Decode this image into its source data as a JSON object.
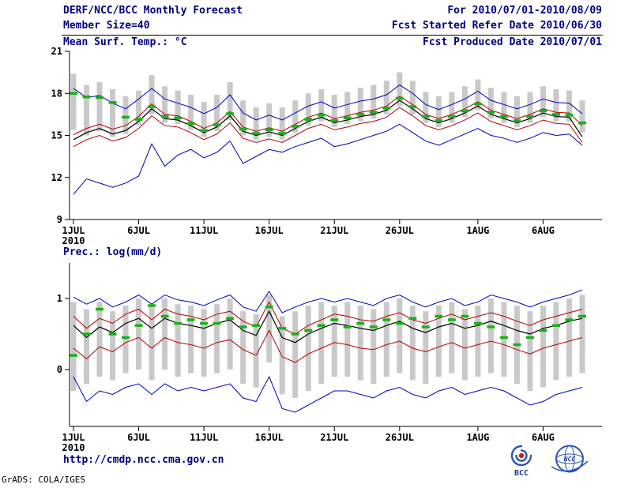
{
  "header": {
    "title": "DERF/NCC/BCC Monthly Forecast",
    "member_size": "Member Size=40",
    "temp_axis_title": "Mean Surf. Temp.: °C",
    "forecast_range": "For 2010/07/01-2010/08/09",
    "refer_date": "Fcst Started Refer Date 2010/06/30",
    "produced_date": "Fcst Produced Date 2010/07/01"
  },
  "precip_axis_title": "Prec.: log(mm/d)",
  "footer": {
    "url": "http://cmdp.ncc.cma.gov.cn",
    "bcc_logo_text": "BCC",
    "ncc_logo_text": "NCC",
    "grads_credit": "GrADS: COLA/IGES"
  },
  "chart_data": [
    {
      "name": "surface-temperature-forecast",
      "type": "line",
      "title": "Mean Surf. Temp.: °C",
      "n": 40,
      "x_tick_days": [
        1,
        6,
        11,
        16,
        21,
        26,
        32,
        37
      ],
      "x_tick_labels": [
        "1JUL",
        "6JUL",
        "11JUL",
        "16JUL",
        "21JUL",
        "26JUL",
        "1AUG",
        "6AUG"
      ],
      "x_year_label": "2010",
      "ylim": [
        9,
        21
      ],
      "y_ticks": [
        9,
        12,
        15,
        18,
        21
      ],
      "bar_color": "#c9c9c9",
      "bars": {
        "low": [
          15.4,
          15.0,
          15.3,
          14.9,
          15.1,
          15.7,
          16.5,
          15.9,
          15.8,
          15.4,
          14.9,
          15.3,
          16.1,
          15.0,
          14.7,
          14.9,
          14.7,
          15.2,
          15.7,
          16.0,
          15.6,
          15.8,
          16.0,
          16.2,
          16.5,
          17.1,
          16.5,
          15.9,
          15.6,
          15.9,
          16.3,
          16.8,
          16.2,
          15.9,
          15.6,
          15.9,
          16.3,
          16.0,
          16.0,
          15.2
        ],
        "high": [
          19.4,
          18.6,
          18.8,
          18.3,
          17.8,
          18.2,
          19.3,
          18.5,
          18.2,
          17.9,
          17.4,
          17.9,
          18.8,
          17.5,
          17.0,
          17.3,
          17.0,
          17.5,
          18.0,
          18.3,
          17.9,
          18.1,
          18.4,
          18.6,
          18.9,
          19.5,
          18.9,
          18.1,
          17.8,
          18.1,
          18.5,
          19.0,
          18.4,
          18.1,
          17.8,
          18.1,
          18.5,
          18.3,
          18.2,
          17.5
        ]
      },
      "lines": [
        {
          "name": "ensemble-max",
          "color": "#0000bb",
          "width": 1,
          "values": [
            18.35,
            17.7,
            17.85,
            17.3,
            16.9,
            17.6,
            18.35,
            17.6,
            17.3,
            17.0,
            16.55,
            17.0,
            17.9,
            16.6,
            16.1,
            16.45,
            16.1,
            16.6,
            17.1,
            17.4,
            16.95,
            17.2,
            17.45,
            17.6,
            17.9,
            18.6,
            18.0,
            17.2,
            16.85,
            17.2,
            17.6,
            18.15,
            17.5,
            17.2,
            16.9,
            17.2,
            17.6,
            17.35,
            17.3,
            16.55
          ]
        },
        {
          "name": "upper-quartile",
          "color": "#b40000",
          "width": 1,
          "values": [
            15.05,
            15.5,
            15.8,
            15.45,
            15.7,
            16.35,
            17.25,
            16.5,
            16.4,
            16.0,
            15.5,
            15.9,
            16.7,
            15.6,
            15.3,
            15.55,
            15.3,
            15.8,
            16.3,
            16.6,
            16.2,
            16.4,
            16.65,
            16.8,
            17.1,
            17.8,
            17.2,
            16.5,
            16.2,
            16.5,
            16.9,
            17.4,
            16.8,
            16.5,
            16.2,
            16.5,
            16.9,
            16.65,
            16.6,
            15.7
          ]
        },
        {
          "name": "ensemble-median",
          "color": "#000000",
          "width": 1.2,
          "values": [
            14.7,
            15.2,
            15.5,
            15.1,
            15.35,
            16.0,
            16.9,
            16.2,
            16.1,
            15.7,
            15.2,
            15.6,
            16.4,
            15.3,
            15.0,
            15.25,
            15.0,
            15.5,
            16.0,
            16.3,
            15.9,
            16.1,
            16.35,
            16.5,
            16.8,
            17.5,
            16.9,
            16.2,
            15.9,
            16.2,
            16.6,
            17.1,
            16.5,
            16.2,
            15.9,
            16.2,
            16.6,
            16.35,
            16.3,
            14.9
          ]
        },
        {
          "name": "lower-quartile",
          "color": "#b40000",
          "width": 1,
          "values": [
            14.2,
            14.7,
            15.0,
            14.6,
            14.85,
            15.5,
            16.4,
            15.7,
            15.6,
            15.2,
            14.7,
            15.1,
            15.9,
            14.8,
            14.5,
            14.75,
            14.5,
            15.0,
            15.5,
            15.8,
            15.4,
            15.6,
            15.85,
            16.0,
            16.3,
            17.0,
            16.4,
            15.7,
            15.4,
            15.7,
            16.1,
            16.6,
            16.0,
            15.7,
            15.4,
            15.7,
            16.1,
            15.85,
            15.8,
            14.5
          ]
        },
        {
          "name": "ensemble-min",
          "color": "#0000bb",
          "width": 1,
          "values": [
            10.8,
            11.9,
            11.6,
            11.3,
            11.6,
            12.1,
            14.4,
            12.8,
            13.6,
            14.0,
            13.4,
            13.8,
            14.6,
            13.0,
            13.5,
            14.0,
            13.8,
            14.2,
            14.5,
            14.8,
            14.2,
            14.4,
            14.7,
            15.0,
            15.3,
            15.8,
            15.2,
            14.6,
            14.3,
            14.7,
            15.1,
            15.5,
            15.0,
            14.8,
            14.5,
            14.8,
            15.2,
            15.0,
            15.1,
            14.3
          ]
        }
      ],
      "obs_markers": {
        "name": "ensemble-mean-dash",
        "color": "#17b317",
        "values": [
          18.0,
          17.75,
          17.7,
          17.35,
          16.3,
          16.15,
          17.05,
          16.35,
          16.25,
          15.85,
          15.35,
          15.75,
          16.55,
          15.45,
          15.15,
          15.4,
          15.15,
          15.65,
          16.15,
          16.45,
          16.05,
          16.25,
          16.5,
          16.65,
          16.95,
          17.65,
          17.05,
          16.35,
          16.05,
          16.35,
          16.75,
          17.25,
          16.65,
          16.35,
          16.05,
          16.35,
          16.75,
          16.5,
          16.45,
          15.9
        ]
      }
    },
    {
      "name": "precipitation-forecast",
      "type": "line",
      "title": "Prec.: log(mm/d)",
      "n": 40,
      "x_tick_days": [
        1,
        6,
        11,
        16,
        21,
        26,
        32,
        37
      ],
      "x_tick_labels": [
        "1JUL",
        "6JUL",
        "11JUL",
        "16JUL",
        "21JUL",
        "26JUL",
        "1AUG",
        "6AUG"
      ],
      "x_year_label": "2010",
      "ylim": [
        -0.8,
        1.5
      ],
      "y_ticks": [
        0,
        1
      ],
      "bar_color": "#c9c9c9",
      "bars": {
        "low": [
          -0.3,
          -0.2,
          -0.1,
          -0.15,
          -0.05,
          0.0,
          -0.15,
          0.0,
          -0.1,
          -0.05,
          -0.1,
          -0.05,
          0.0,
          -0.2,
          -0.25,
          0.1,
          -0.35,
          -0.4,
          -0.3,
          -0.2,
          -0.1,
          -0.1,
          -0.15,
          -0.2,
          -0.1,
          -0.05,
          -0.15,
          -0.2,
          -0.1,
          -0.05,
          -0.15,
          -0.1,
          -0.05,
          -0.1,
          -0.2,
          -0.3,
          -0.25,
          -0.15,
          -0.1,
          -0.05
        ],
        "high": [
          0.95,
          0.85,
          0.95,
          0.82,
          0.9,
          1.0,
          0.88,
          1.0,
          0.92,
          0.9,
          0.85,
          0.92,
          1.0,
          0.82,
          0.78,
          1.05,
          0.75,
          0.82,
          0.9,
          0.95,
          0.9,
          0.95,
          0.9,
          0.85,
          0.95,
          1.0,
          0.9,
          0.82,
          0.9,
          0.95,
          0.85,
          0.9,
          1.0,
          0.95,
          0.9,
          0.82,
          0.9,
          0.95,
          1.0,
          1.05
        ]
      },
      "lines": [
        {
          "name": "ensemble-max",
          "color": "#0000bb",
          "width": 1,
          "values": [
            1.02,
            0.92,
            1.0,
            0.88,
            0.95,
            1.05,
            0.92,
            1.05,
            0.98,
            0.95,
            0.9,
            0.98,
            1.05,
            0.88,
            0.82,
            1.1,
            0.8,
            0.88,
            0.95,
            1.0,
            0.95,
            1.0,
            0.95,
            0.9,
            1.0,
            1.05,
            0.95,
            0.88,
            0.95,
            1.0,
            0.9,
            0.95,
            1.05,
            1.0,
            0.95,
            0.88,
            0.95,
            1.0,
            1.05,
            1.12
          ]
        },
        {
          "name": "upper-quartile",
          "color": "#b40000",
          "width": 1,
          "values": [
            0.75,
            0.58,
            0.72,
            0.65,
            0.78,
            0.85,
            0.7,
            0.85,
            0.78,
            0.75,
            0.7,
            0.78,
            0.82,
            0.68,
            0.6,
            0.95,
            0.58,
            0.5,
            0.62,
            0.7,
            0.78,
            0.75,
            0.7,
            0.68,
            0.75,
            0.8,
            0.7,
            0.65,
            0.72,
            0.78,
            0.7,
            0.75,
            0.8,
            0.75,
            0.68,
            0.62,
            0.7,
            0.75,
            0.8,
            0.85
          ]
        },
        {
          "name": "ensemble-median",
          "color": "#000000",
          "width": 1.2,
          "values": [
            0.62,
            0.45,
            0.6,
            0.52,
            0.65,
            0.72,
            0.58,
            0.72,
            0.65,
            0.62,
            0.58,
            0.65,
            0.7,
            0.55,
            0.48,
            0.82,
            0.45,
            0.38,
            0.5,
            0.58,
            0.65,
            0.62,
            0.58,
            0.55,
            0.62,
            0.68,
            0.58,
            0.52,
            0.6,
            0.65,
            0.58,
            0.62,
            0.68,
            0.62,
            0.55,
            0.5,
            0.58,
            0.62,
            0.68,
            0.72
          ]
        },
        {
          "name": "lower-quartile",
          "color": "#b40000",
          "width": 1,
          "values": [
            0.3,
            0.15,
            0.32,
            0.25,
            0.38,
            0.45,
            0.3,
            0.45,
            0.38,
            0.35,
            0.3,
            0.38,
            0.42,
            0.28,
            0.2,
            0.55,
            0.18,
            0.1,
            0.22,
            0.3,
            0.38,
            0.35,
            0.3,
            0.28,
            0.35,
            0.4,
            0.3,
            0.25,
            0.32,
            0.38,
            0.3,
            0.35,
            0.4,
            0.35,
            0.28,
            0.22,
            0.3,
            0.35,
            0.4,
            0.45
          ]
        },
        {
          "name": "ensemble-min",
          "color": "#0000bb",
          "width": 1,
          "values": [
            -0.1,
            -0.45,
            -0.3,
            -0.35,
            -0.25,
            -0.2,
            -0.35,
            -0.2,
            -0.3,
            -0.25,
            -0.3,
            -0.25,
            -0.2,
            -0.4,
            -0.45,
            -0.1,
            -0.55,
            -0.6,
            -0.5,
            -0.4,
            -0.3,
            -0.3,
            -0.35,
            -0.4,
            -0.3,
            -0.25,
            -0.35,
            -0.4,
            -0.3,
            -0.25,
            -0.35,
            -0.3,
            -0.25,
            -0.3,
            -0.4,
            -0.5,
            -0.45,
            -0.35,
            -0.3,
            -0.25
          ]
        }
      ],
      "obs_markers": {
        "name": "ensemble-mean-dash",
        "color": "#17b317",
        "values": [
          0.2,
          0.5,
          0.85,
          0.5,
          0.45,
          0.62,
          0.9,
          0.75,
          0.65,
          0.7,
          0.65,
          0.65,
          0.72,
          0.6,
          0.62,
          0.88,
          0.58,
          0.5,
          0.55,
          0.62,
          0.7,
          0.6,
          0.65,
          0.6,
          0.7,
          0.65,
          0.72,
          0.6,
          0.75,
          0.7,
          0.75,
          0.65,
          0.6,
          0.45,
          0.35,
          0.45,
          0.55,
          0.62,
          0.7,
          0.75
        ]
      }
    }
  ]
}
